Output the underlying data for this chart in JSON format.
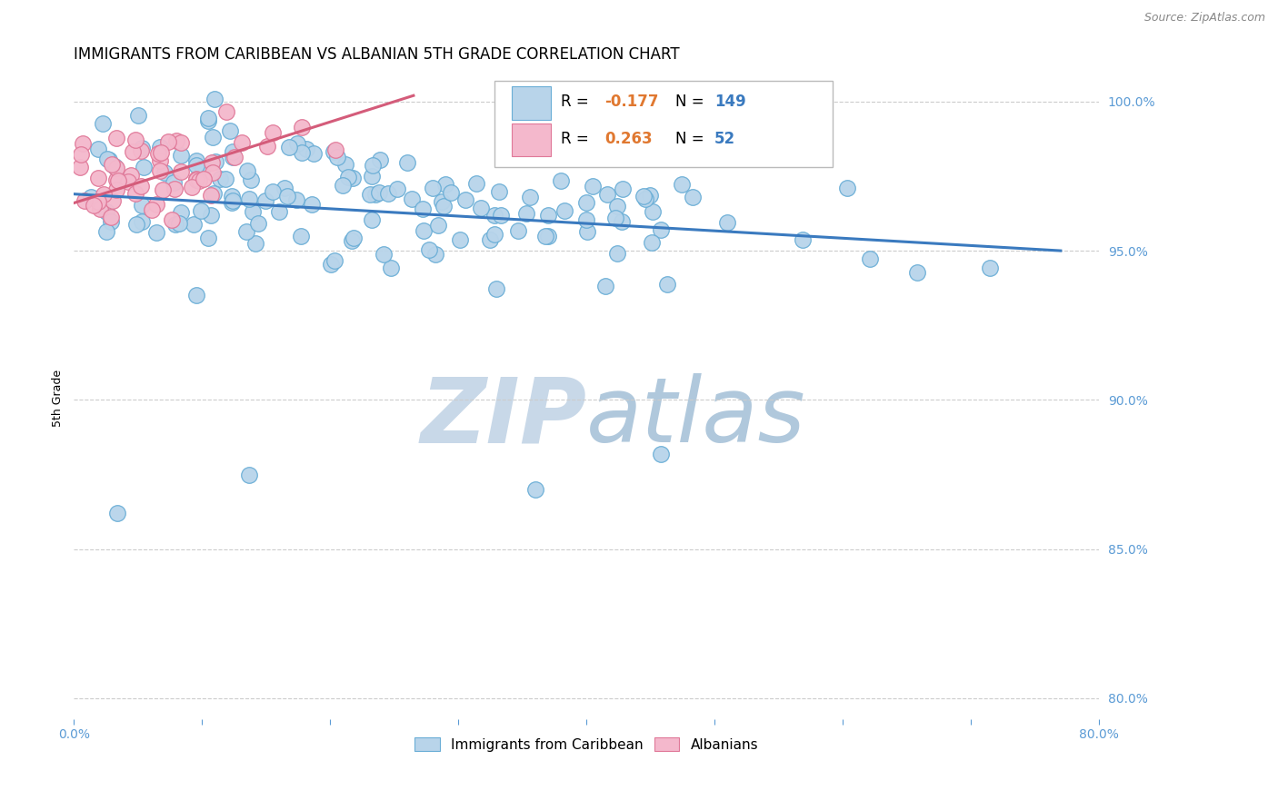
{
  "title": "IMMIGRANTS FROM CARIBBEAN VS ALBANIAN 5TH GRADE CORRELATION CHART",
  "source_text": "Source: ZipAtlas.com",
  "ylabel": "5th Grade",
  "xlim": [
    0.0,
    0.8
  ],
  "ylim": [
    0.793,
    1.008
  ],
  "xticks": [
    0.0,
    0.1,
    0.2,
    0.3,
    0.4,
    0.5,
    0.6,
    0.7,
    0.8
  ],
  "xticklabels": [
    "0.0%",
    "",
    "",
    "",
    "",
    "",
    "",
    "",
    "80.0%"
  ],
  "yticks": [
    0.8,
    0.85,
    0.9,
    0.95,
    1.0
  ],
  "yticklabels": [
    "80.0%",
    "85.0%",
    "90.0%",
    "95.0%",
    "100.0%"
  ],
  "blue_color": "#b8d4ea",
  "blue_edge_color": "#6aaed6",
  "pink_color": "#f4b8cc",
  "pink_edge_color": "#e07898",
  "blue_line_color": "#3a7abf",
  "pink_line_color": "#d45c7a",
  "legend_blue_R": "-0.177",
  "legend_blue_N": "149",
  "legend_pink_R": "0.263",
  "legend_pink_N": "52",
  "legend_R_color": "#e07830",
  "legend_N_color": "#3a7abf",
  "watermark_zip_color": "#c8d8e8",
  "watermark_atlas_color": "#b0c8dc",
  "grid_color": "#cccccc",
  "tick_color": "#5b9bd5",
  "title_fontsize": 12,
  "tick_fontsize": 10
}
